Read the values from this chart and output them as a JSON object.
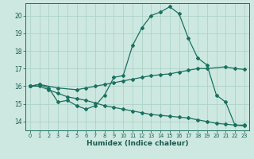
{
  "xlabel": "Humidex (Indice chaleur)",
  "background_color": "#cde8e0",
  "line_color": "#1a7060",
  "grid_color": "#a8cfc4",
  "xlim": [
    -0.5,
    23.5
  ],
  "ylim": [
    13.5,
    20.7
  ],
  "yticks": [
    14,
    15,
    16,
    17,
    18,
    19,
    20
  ],
  "xticks": [
    0,
    1,
    2,
    3,
    4,
    5,
    6,
    7,
    8,
    9,
    10,
    11,
    12,
    13,
    14,
    15,
    16,
    17,
    18,
    19,
    20,
    21,
    22,
    23
  ],
  "curve1_x": [
    0,
    1,
    2,
    3,
    4,
    5,
    6,
    7,
    8,
    9,
    10,
    11,
    12,
    13,
    14,
    15,
    16,
    17,
    18,
    19,
    20,
    21,
    22,
    23
  ],
  "curve1_y": [
    16.0,
    16.1,
    15.9,
    15.1,
    15.2,
    14.9,
    14.7,
    14.9,
    15.5,
    16.5,
    16.6,
    18.3,
    19.3,
    20.0,
    20.2,
    20.5,
    20.1,
    18.7,
    17.6,
    17.2,
    15.5,
    15.1,
    13.8,
    13.8
  ],
  "curve2_x": [
    0,
    1,
    3,
    5,
    6,
    7,
    8,
    9,
    10,
    11,
    12,
    13,
    14,
    15,
    16,
    17,
    18,
    19,
    21,
    22,
    23
  ],
  "curve2_y": [
    16.0,
    16.1,
    15.9,
    15.8,
    15.9,
    16.0,
    16.1,
    16.2,
    16.3,
    16.4,
    16.5,
    16.6,
    16.65,
    16.7,
    16.8,
    16.9,
    17.0,
    17.0,
    17.1,
    17.0,
    16.95
  ],
  "curve3_x": [
    0,
    1,
    2,
    3,
    4,
    5,
    6,
    7,
    8,
    9,
    10,
    11,
    12,
    13,
    14,
    15,
    16,
    17,
    18,
    19,
    20,
    21,
    22,
    23
  ],
  "curve3_y": [
    16.0,
    16.0,
    15.8,
    15.6,
    15.4,
    15.3,
    15.2,
    15.05,
    14.9,
    14.8,
    14.7,
    14.6,
    14.5,
    14.4,
    14.35,
    14.3,
    14.25,
    14.2,
    14.1,
    14.0,
    13.9,
    13.85,
    13.8,
    13.75
  ]
}
